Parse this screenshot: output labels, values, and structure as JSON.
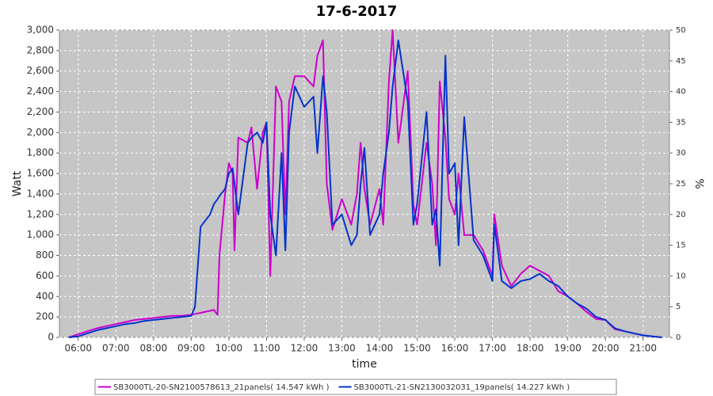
{
  "chart_data": {
    "type": "line",
    "title": "17-6-2017",
    "x_label": "time",
    "y_label": "Watt",
    "y2_label": "%",
    "xlim": [
      5.5,
      21.7
    ],
    "xticks": [
      {
        "value": 6,
        "label": "06:00"
      },
      {
        "value": 7,
        "label": "07:00"
      },
      {
        "value": 8,
        "label": "08:00"
      },
      {
        "value": 9,
        "label": "09:00"
      },
      {
        "value": 10,
        "label": "10:00"
      },
      {
        "value": 11,
        "label": "11:00"
      },
      {
        "value": 12,
        "label": "12:00"
      },
      {
        "value": 13,
        "label": "13:00"
      },
      {
        "value": 14,
        "label": "14:00"
      },
      {
        "value": 15,
        "label": "15:00"
      },
      {
        "value": 16,
        "label": "16:00"
      },
      {
        "value": 17,
        "label": "17:00"
      },
      {
        "value": 18,
        "label": "18:00"
      },
      {
        "value": 19,
        "label": "19:00"
      },
      {
        "value": 20,
        "label": "20:00"
      },
      {
        "value": 21,
        "label": "21:00"
      }
    ],
    "ylim": [
      0,
      3000
    ],
    "yticks": [
      0,
      200,
      400,
      600,
      800,
      {
        "value": 1000,
        "label": "1,000"
      },
      {
        "value": 1200,
        "label": "1,200"
      },
      {
        "value": 1400,
        "label": "1,400"
      },
      {
        "value": 1600,
        "label": "1,600"
      },
      {
        "value": 1800,
        "label": "1,800"
      },
      {
        "value": 2000,
        "label": "2,000"
      },
      {
        "value": 2200,
        "label": "2,200"
      },
      {
        "value": 2400,
        "label": "2,400"
      },
      {
        "value": 2600,
        "label": "2,600"
      },
      {
        "value": 2800,
        "label": "2,800"
      },
      {
        "value": 3000,
        "label": "3,000"
      }
    ],
    "y2lim": [
      0,
      50
    ],
    "y2ticks": [
      0,
      5,
      10,
      15,
      20,
      25,
      30,
      35,
      40,
      45,
      50
    ],
    "grid": true,
    "legend": "bottom",
    "x": [
      5.75,
      6,
      6.25,
      6.5,
      6.75,
      7,
      7.25,
      7.5,
      7.75,
      8,
      8.25,
      8.5,
      8.75,
      9,
      9.1,
      9.25,
      9.5,
      9.6,
      9.7,
      9.75,
      9.9,
      10,
      10.1,
      10.15,
      10.25,
      10.5,
      10.6,
      10.75,
      10.9,
      11,
      11.1,
      11.25,
      11.4,
      11.5,
      11.6,
      11.75,
      12,
      12.25,
      12.35,
      12.5,
      12.6,
      12.75,
      13,
      13.25,
      13.4,
      13.5,
      13.6,
      13.75,
      14,
      14.1,
      14.25,
      14.35,
      14.5,
      14.75,
      14.9,
      15,
      15.25,
      15.4,
      15.5,
      15.6,
      15.75,
      15.85,
      16,
      16.1,
      16.25,
      16.5,
      16.75,
      17,
      17.05,
      17.25,
      17.5,
      17.75,
      18,
      18.25,
      18.5,
      18.75,
      19,
      19.25,
      19.5,
      19.75,
      20,
      20.25,
      20.5,
      20.75,
      21,
      21.25,
      21.5
    ],
    "series": [
      {
        "name": "SB3000TL-20-SN2100578613_21panels( 14.547 kWh )",
        "color": "#cc00cc",
        "values": [
          0,
          30,
          60,
          90,
          110,
          130,
          150,
          170,
          180,
          190,
          200,
          210,
          210,
          220,
          230,
          240,
          260,
          270,
          220,
          800,
          1400,
          1700,
          1600,
          850,
          1950,
          1900,
          2050,
          1450,
          2000,
          2100,
          600,
          2450,
          2300,
          1200,
          2300,
          2550,
          2550,
          2450,
          2750,
          2900,
          1500,
          1050,
          1350,
          1100,
          1400,
          1900,
          1450,
          1100,
          1450,
          1100,
          2500,
          3000,
          1900,
          2600,
          1300,
          1100,
          1900,
          1500,
          900,
          2500,
          1950,
          1350,
          1200,
          1600,
          1000,
          1000,
          850,
          600,
          1200,
          700,
          500,
          620,
          700,
          650,
          600,
          450,
          400,
          330,
          250,
          180,
          170,
          80,
          60,
          40,
          20,
          10,
          0
        ]
      },
      {
        "name": "SB3000TL-21-SN2130032031_19panels( 14.227 kWh )",
        "color": "#0033cc",
        "values": [
          0,
          10,
          40,
          70,
          90,
          110,
          130,
          140,
          160,
          170,
          180,
          190,
          200,
          210,
          300,
          1080,
          1200,
          1300,
          1350,
          1380,
          1450,
          1600,
          1650,
          1500,
          1200,
          1900,
          1950,
          2000,
          1900,
          2100,
          1200,
          800,
          1800,
          850,
          2000,
          2450,
          2250,
          2350,
          1800,
          2550,
          2200,
          1100,
          1200,
          900,
          1000,
          1500,
          1850,
          1000,
          1200,
          1600,
          2000,
          2450,
          2900,
          2300,
          1100,
          1300,
          2200,
          1100,
          1250,
          700,
          2750,
          1600,
          1700,
          900,
          2150,
          950,
          800,
          550,
          1100,
          550,
          480,
          550,
          570,
          620,
          550,
          500,
          400,
          330,
          280,
          200,
          170,
          90,
          60,
          40,
          20,
          10,
          0
        ]
      }
    ]
  }
}
